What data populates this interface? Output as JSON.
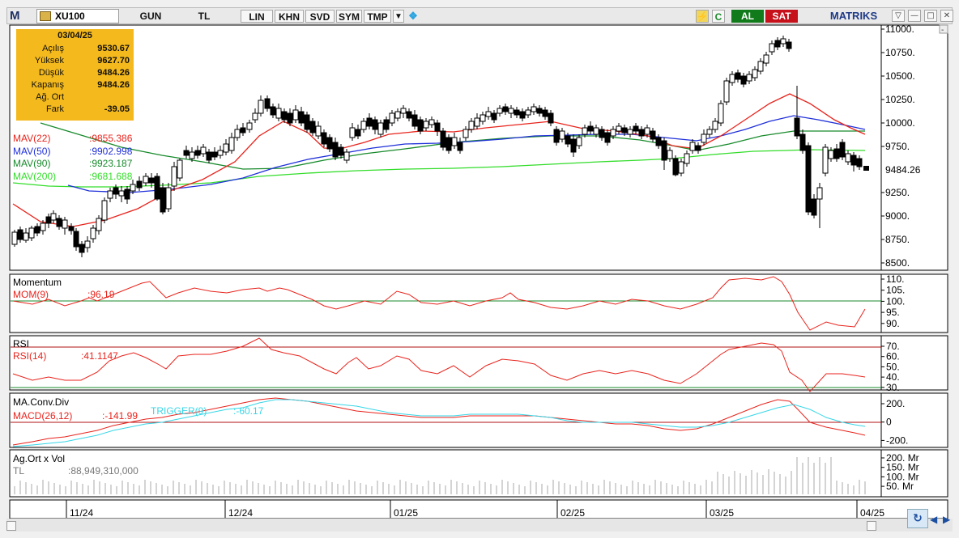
{
  "toolbar": {
    "logo": "M",
    "symbol": "XU100",
    "period": "GUN",
    "currency": "TL",
    "scale": "LIN",
    "items": [
      "KHN",
      "SVD",
      "SYM",
      "TMP"
    ],
    "buy_label": "AL",
    "sell_label": "SAT",
    "brand": "MATRIKS"
  },
  "info_box": {
    "date": "03/04/25",
    "rows": [
      {
        "label": "Açılış",
        "value": "9530.67"
      },
      {
        "label": "Yüksek",
        "value": "9627.70"
      },
      {
        "label": "Düşük",
        "value": "9484.26"
      },
      {
        "label": "Kapanış",
        "value": "9484.26"
      },
      {
        "label": "Ağ. Ort",
        "value": ""
      },
      {
        "label": "Fark",
        "value": "-39.05"
      }
    ]
  },
  "price_panel": {
    "legend": [
      {
        "label": "MAV(22)",
        "value": ":9855.386",
        "color": "#e8231c"
      },
      {
        "label": "MAV(50)",
        "value": ":9902.998",
        "color": "#1f2fd9"
      },
      {
        "label": "MAV(90)",
        "value": ":9923.187",
        "color": "#178a2b"
      },
      {
        "label": "MAV(200)",
        "value": ":9681.688",
        "color": "#33dd2a"
      }
    ],
    "y_ticks": [
      "11000.",
      "10750.",
      "10500.",
      "10250.",
      "10000.",
      "9750.",
      "9484.26",
      "9250.",
      "9000.",
      "8750.",
      "8500."
    ],
    "last_price": "9484.26"
  },
  "momentum_panel": {
    "title": "Momentum",
    "legend_label": "MOM(9)",
    "legend_value": ":96.19",
    "y_ticks": [
      "110.",
      "105.",
      "100.",
      "95.",
      "90."
    ]
  },
  "rsi_panel": {
    "title": "RSI",
    "legend_label": "RSI(14)",
    "legend_value": ":41.1147",
    "y_ticks": [
      "70.",
      "60.",
      "50.",
      "40.",
      "30."
    ]
  },
  "macd_panel": {
    "title": "MA.Conv.Div",
    "macd_label": "MACD(26,12)",
    "macd_value": ":-141.99",
    "trigger_label": "TRIGGER(9)",
    "trigger_value": ":-60.17",
    "y_ticks": [
      "200.",
      "0",
      "-200."
    ]
  },
  "volume_panel": {
    "title": "Ag.Ort x Vol",
    "unit": "TL",
    "value": ":88,949,310,000",
    "y_ticks": [
      "200. Mr",
      "150. Mr",
      "100. Mr",
      "50. Mr"
    ]
  },
  "x_axis": {
    "labels": [
      "11/24",
      "12/24",
      "01/25",
      "02/25",
      "03/25",
      "04/25"
    ]
  },
  "colors": {
    "up_candle": "#ffffff",
    "down_candle": "#000000",
    "mav22": "#e8231c",
    "mav50": "#1f2fd9",
    "mav90": "#178a2b",
    "mav200": "#33dd2a",
    "momentum": "#e8231c",
    "trigger": "#36d6e7",
    "info_box": "#f4b91c",
    "buy": "#117a1a",
    "sell": "#c6101a"
  },
  "chart_data": {
    "type": "line",
    "series": [
      {
        "name": "MAV(22)",
        "last": 9855.386
      },
      {
        "name": "MAV(50)",
        "last": 9902.998
      },
      {
        "name": "MAV(90)",
        "last": 9923.187
      },
      {
        "name": "MAV(200)",
        "last": 9681.688
      }
    ],
    "ylim": [
      8500,
      11000
    ]
  }
}
